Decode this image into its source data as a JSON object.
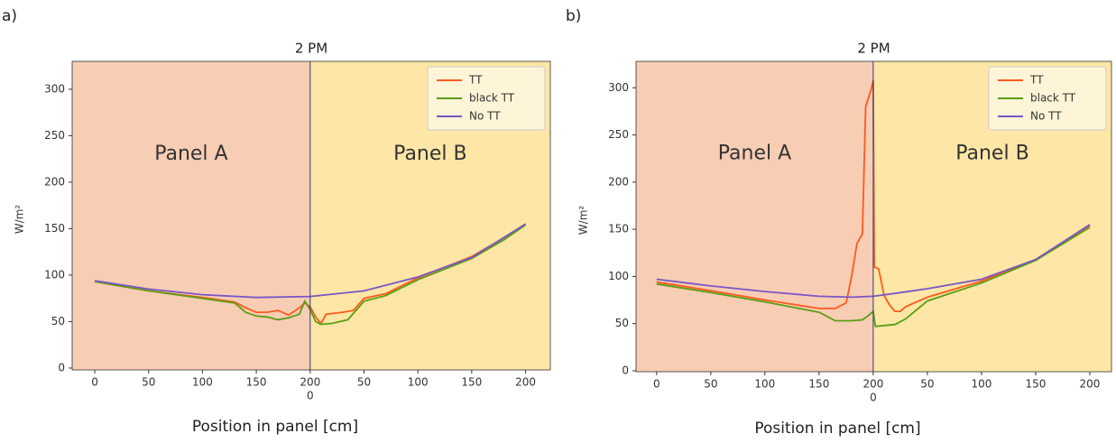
{
  "chart_data": [
    {
      "type": "line",
      "label": "a)",
      "title": "2 PM",
      "xlabel": "Position in panel [cm]",
      "ylabel": "W/m²",
      "xlim": [
        -21,
        423
      ],
      "ylim": [
        -2,
        330
      ],
      "xticks": [
        0,
        50,
        100,
        150,
        {
          "value": 200,
          "label": "200"
        },
        {
          "value": 200,
          "label": "0"
        },
        {
          "value": 250,
          "label": "50"
        },
        {
          "value": 300,
          "label": "100"
        },
        {
          "value": 350,
          "label": "150"
        },
        {
          "value": 400,
          "label": "200"
        }
      ],
      "yticks": [
        0,
        50,
        100,
        150,
        200,
        250,
        300
      ],
      "divider": 200,
      "panel_colors": [
        "#f7cdb4",
        "#fde6a6"
      ],
      "divider_color": "#2b3a86",
      "annotations": [
        "Panel A",
        "Panel B"
      ],
      "legend": "upper right",
      "series": [
        {
          "name": "TT",
          "color": "#ff5a1e",
          "x": [
            0,
            50,
            100,
            130,
            140,
            150,
            160,
            170,
            180,
            190,
            195,
            200,
            205,
            210,
            215,
            230,
            240,
            250,
            270,
            300,
            350,
            380,
            400
          ],
          "values": [
            93,
            83,
            76,
            71,
            65,
            60,
            60,
            62,
            57,
            65,
            70,
            66,
            55,
            48,
            58,
            60,
            62,
            75,
            80,
            97,
            120,
            140,
            155
          ]
        },
        {
          "name": "black TT",
          "color": "#5a9e14",
          "x": [
            0,
            50,
            100,
            130,
            140,
            150,
            160,
            170,
            180,
            190,
            195,
            200,
            205,
            210,
            220,
            235,
            250,
            270,
            300,
            350,
            380,
            400
          ],
          "values": [
            93,
            83,
            75,
            70,
            60,
            56,
            55,
            52,
            54,
            58,
            72,
            63,
            50,
            47,
            48,
            52,
            72,
            78,
            95,
            118,
            138,
            154
          ]
        },
        {
          "name": "No TT",
          "color": "#7a56c6",
          "x": [
            0,
            50,
            100,
            150,
            200,
            250,
            300,
            350,
            400
          ],
          "values": [
            94,
            85,
            79,
            76,
            77,
            83,
            98,
            119,
            155
          ]
        }
      ]
    },
    {
      "type": "line",
      "label": "b)",
      "title": "2 PM",
      "xlabel": "Position in panel [cm]",
      "ylabel": "W/m²",
      "xlim": [
        -19,
        420
      ],
      "ylim": [
        -1,
        328
      ],
      "xticks": [
        0,
        50,
        100,
        150,
        {
          "value": 200,
          "label": "200"
        },
        {
          "value": 200,
          "label": "0"
        },
        {
          "value": 250,
          "label": "50"
        },
        {
          "value": 300,
          "label": "100"
        },
        {
          "value": 350,
          "label": "150"
        },
        {
          "value": 400,
          "label": "200"
        }
      ],
      "yticks": [
        0,
        50,
        100,
        150,
        200,
        250,
        300
      ],
      "divider": 200,
      "panel_colors": [
        "#f7cdb4",
        "#fde6a6"
      ],
      "divider_color": "#2b3a86",
      "annotations": [
        "Panel A",
        "Panel B"
      ],
      "legend": "upper right",
      "series": [
        {
          "name": "TT",
          "color": "#ff5a1e",
          "x": [
            0,
            50,
            100,
            150,
            165,
            175,
            180,
            185,
            190,
            193,
            198,
            200,
            201,
            205,
            210,
            215,
            220,
            225,
            230,
            250,
            300,
            350,
            400
          ],
          "values": [
            94,
            85,
            75,
            66,
            66,
            72,
            100,
            135,
            145,
            280,
            298,
            308,
            110,
            108,
            80,
            70,
            63,
            63,
            68,
            78,
            95,
            118,
            154
          ]
        },
        {
          "name": "black TT",
          "color": "#5a9e14",
          "x": [
            0,
            50,
            100,
            150,
            165,
            180,
            190,
            195,
            200,
            202,
            210,
            220,
            230,
            250,
            300,
            350,
            400
          ],
          "values": [
            92,
            83,
            73,
            62,
            53,
            53,
            54,
            58,
            63,
            47,
            48,
            49,
            55,
            74,
            93,
            117,
            152
          ]
        },
        {
          "name": "No TT",
          "color": "#7a56c6",
          "x": [
            0,
            50,
            100,
            150,
            180,
            200,
            220,
            250,
            300,
            350,
            400
          ],
          "values": [
            97,
            90,
            84,
            79,
            78,
            79,
            82,
            87,
            97,
            118,
            155
          ]
        }
      ]
    }
  ]
}
